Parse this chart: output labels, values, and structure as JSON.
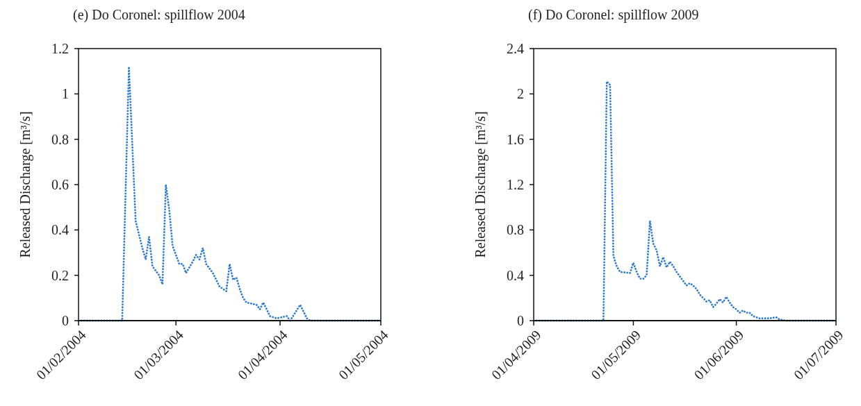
{
  "chart_data": [
    {
      "type": "line",
      "title": "(e) Do Coronel: spillflow 2004",
      "ylabel": "Released Discharge [m³/s]",
      "xlim": [
        "2004-02-01",
        "2004-05-01"
      ],
      "xticks": [
        {
          "value": "2004-02-01",
          "label": "01/02/2004"
        },
        {
          "value": "2004-03-01",
          "label": "01/03/2004"
        },
        {
          "value": "2004-04-01",
          "label": "01/04/2004"
        },
        {
          "value": "2004-05-01",
          "label": "01/05/2004"
        }
      ],
      "ylim": [
        0,
        1.2
      ],
      "yticks": [
        0,
        0.2,
        0.4,
        0.6,
        0.8,
        1,
        1.2
      ],
      "line_style": "dotted",
      "marker": "none",
      "series": [
        {
          "color": "#2b7bd4",
          "x": [
            "2004-02-01",
            "2004-02-14",
            "2004-02-16",
            "2004-02-18",
            "2004-02-19",
            "2004-02-20",
            "2004-02-21",
            "2004-02-22",
            "2004-02-23",
            "2004-02-25",
            "2004-02-26",
            "2004-02-27",
            "2004-02-28",
            "2004-02-29",
            "2004-03-02",
            "2004-03-03",
            "2004-03-04",
            "2004-03-06",
            "2004-03-07",
            "2004-03-08",
            "2004-03-09",
            "2004-03-10",
            "2004-03-12",
            "2004-03-14",
            "2004-03-16",
            "2004-03-17",
            "2004-03-18",
            "2004-03-19",
            "2004-03-20",
            "2004-03-21",
            "2004-03-22",
            "2004-03-25",
            "2004-03-26",
            "2004-03-27",
            "2004-03-28",
            "2004-03-29",
            "2004-03-31",
            "2004-04-03",
            "2004-04-04",
            "2004-04-07",
            "2004-04-09",
            "2004-04-10",
            "2004-05-01"
          ],
          "values": [
            0,
            0,
            1.12,
            0.44,
            0.38,
            0.32,
            0.27,
            0.37,
            0.24,
            0.2,
            0.16,
            0.6,
            0.49,
            0.33,
            0.25,
            0.25,
            0.21,
            0.26,
            0.29,
            0.27,
            0.32,
            0.25,
            0.21,
            0.15,
            0.13,
            0.25,
            0.18,
            0.19,
            0.14,
            0.1,
            0.08,
            0.07,
            0.05,
            0.08,
            0.05,
            0.02,
            0.01,
            0.02,
            0,
            0.07,
            0.01,
            0,
            0
          ]
        }
      ]
    },
    {
      "type": "line",
      "title": "(f) Do Coronel: spillflow 2009",
      "ylabel": "Released Discharge [m³/s]",
      "xlim": [
        "2009-04-01",
        "2009-07-01"
      ],
      "xticks": [
        {
          "value": "2009-04-01",
          "label": "01/04/2009"
        },
        {
          "value": "2009-05-01",
          "label": "01/05/2009"
        },
        {
          "value": "2009-06-01",
          "label": "01/06/2009"
        },
        {
          "value": "2009-07-01",
          "label": "01/07/2009"
        }
      ],
      "ylim": [
        0,
        2.4
      ],
      "yticks": [
        0,
        0.4,
        0.8,
        1.2,
        1.6,
        2,
        2.4
      ],
      "line_style": "dotted",
      "marker": "none",
      "series": [
        {
          "color": "#2b7bd4",
          "x": [
            "2009-04-01",
            "2009-04-22",
            "2009-04-23",
            "2009-04-24",
            "2009-04-25",
            "2009-04-26",
            "2009-04-27",
            "2009-04-30",
            "2009-05-01",
            "2009-05-02",
            "2009-05-03",
            "2009-05-04",
            "2009-05-05",
            "2009-05-06",
            "2009-05-07",
            "2009-05-08",
            "2009-05-09",
            "2009-05-10",
            "2009-05-11",
            "2009-05-12",
            "2009-05-13",
            "2009-05-14",
            "2009-05-15",
            "2009-05-16",
            "2009-05-17",
            "2009-05-18",
            "2009-05-19",
            "2009-05-20",
            "2009-05-21",
            "2009-05-22",
            "2009-05-23",
            "2009-05-24",
            "2009-05-25",
            "2009-05-26",
            "2009-05-27",
            "2009-05-28",
            "2009-05-29",
            "2009-05-30",
            "2009-05-31",
            "2009-06-01",
            "2009-06-02",
            "2009-06-03",
            "2009-06-04",
            "2009-06-05",
            "2009-06-06",
            "2009-06-08",
            "2009-06-10",
            "2009-06-11",
            "2009-06-13",
            "2009-06-14",
            "2009-06-16",
            "2009-07-01"
          ],
          "values": [
            0,
            0,
            2.11,
            2.08,
            0.57,
            0.48,
            0.43,
            0.42,
            0.51,
            0.43,
            0.37,
            0.37,
            0.4,
            0.88,
            0.68,
            0.62,
            0.48,
            0.56,
            0.47,
            0.52,
            0.48,
            0.43,
            0.39,
            0.35,
            0.31,
            0.33,
            0.31,
            0.28,
            0.23,
            0.2,
            0.17,
            0.18,
            0.12,
            0.15,
            0.19,
            0.16,
            0.21,
            0.16,
            0.12,
            0.1,
            0.07,
            0.09,
            0.07,
            0.07,
            0.04,
            0.02,
            0.02,
            0.02,
            0.03,
            0.01,
            0,
            0
          ]
        }
      ]
    }
  ]
}
